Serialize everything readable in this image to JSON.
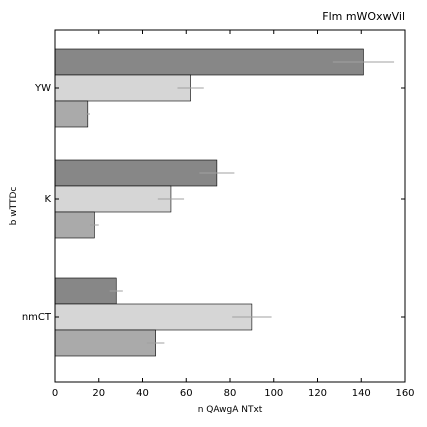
{
  "chart_data": {
    "type": "bar",
    "orientation": "horizontal",
    "title": "Flm mWOxwVil",
    "xlabel": "n QAwgA NTxt",
    "ylabel": "b wTTDc",
    "categories": [
      "nmCT",
      "K",
      "YW"
    ],
    "xlim": [
      0,
      160
    ],
    "xticks": [
      0,
      20,
      40,
      60,
      80,
      100,
      120,
      140,
      160
    ],
    "grid": false,
    "series": [
      {
        "values": [
          28,
          74,
          141
        ],
        "errors": [
          3,
          8,
          14
        ],
        "color": "#878787"
      },
      {
        "values": [
          90,
          53,
          62
        ],
        "errors": [
          9,
          6,
          6
        ],
        "color": "#d6d6d6"
      },
      {
        "values": [
          46,
          18,
          15
        ],
        "errors": [
          4,
          2,
          1
        ],
        "color": "#aaaaaa"
      }
    ]
  }
}
